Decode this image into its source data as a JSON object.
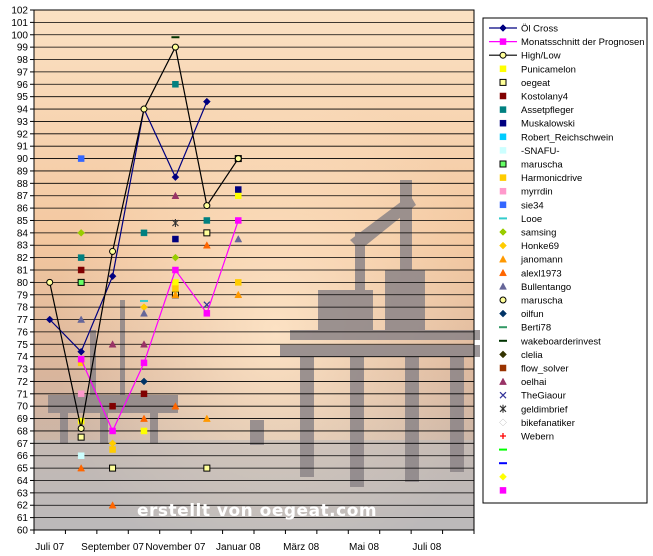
{
  "chart_data": {
    "type": "line",
    "title": "",
    "xlabel": "",
    "ylabel": "",
    "ylim": [
      60,
      102
    ],
    "y_ticks": [
      60,
      61,
      62,
      63,
      64,
      65,
      66,
      67,
      68,
      69,
      70,
      71,
      72,
      73,
      74,
      75,
      76,
      77,
      78,
      79,
      80,
      81,
      82,
      83,
      84,
      85,
      86,
      87,
      88,
      89,
      90,
      91,
      92,
      93,
      94,
      95,
      96,
      97,
      98,
      99,
      100,
      101,
      102
    ],
    "x_tick_labels": [
      "Juli 07",
      "September 07",
      "November 07",
      "Januar 08",
      "März 08",
      "Mai 08",
      "Juli 08"
    ],
    "x_slots": 14,
    "grid": true,
    "legend_position": "right",
    "watermark": "erstellt von oegeat.com",
    "series": [
      {
        "name": "Öl Cross",
        "kind": "line",
        "color": "#000080",
        "marker": "diamond",
        "points": [
          [
            0,
            77
          ],
          [
            1,
            74.4
          ],
          [
            2,
            80.5
          ],
          [
            3,
            94
          ],
          [
            4,
            88.5
          ],
          [
            5,
            94.6
          ]
        ]
      },
      {
        "name": "Monatsschnitt der Prognosen",
        "kind": "line",
        "color": "#ff00ff",
        "marker": "square",
        "points": [
          [
            1,
            73.8
          ],
          [
            2,
            68
          ],
          [
            3,
            73.5
          ],
          [
            4,
            81
          ],
          [
            5,
            77.5
          ],
          [
            6,
            85
          ]
        ]
      },
      {
        "name": "High/Low",
        "kind": "line",
        "color": "#000000",
        "marker": "circle",
        "points": [
          [
            0,
            80
          ],
          [
            1,
            68.2
          ],
          [
            2,
            82.5
          ],
          [
            3,
            94
          ],
          [
            4,
            99
          ],
          [
            5,
            86.2
          ],
          [
            6,
            90
          ]
        ]
      },
      {
        "name": "Punicamelon",
        "kind": "marker",
        "color": "#ffff00",
        "marker": "square",
        "points": [
          [
            1,
            68.8
          ],
          [
            3,
            68
          ],
          [
            4,
            80
          ],
          [
            6,
            87
          ]
        ]
      },
      {
        "name": "oegeat",
        "kind": "marker",
        "color": "#ffff99",
        "marker": "square-open",
        "points": [
          [
            1,
            67.5
          ],
          [
            2,
            65
          ],
          [
            4,
            79
          ],
          [
            5,
            84
          ],
          [
            5,
            65
          ],
          [
            6,
            90
          ]
        ]
      },
      {
        "name": "Kostolany4",
        "kind": "marker",
        "color": "#800000",
        "marker": "square",
        "points": [
          [
            1,
            81
          ],
          [
            2,
            70
          ],
          [
            3,
            71
          ]
        ]
      },
      {
        "name": "Assetpfleger",
        "kind": "marker",
        "color": "#008080",
        "marker": "square",
        "points": [
          [
            1,
            82
          ],
          [
            3,
            84
          ],
          [
            4,
            96
          ],
          [
            5,
            85
          ]
        ]
      },
      {
        "name": "Muskalowski",
        "kind": "marker",
        "color": "#000080",
        "marker": "square",
        "points": [
          [
            4,
            83.5
          ],
          [
            6,
            87.5
          ]
        ]
      },
      {
        "name": "Robert_Reichschwein",
        "kind": "marker",
        "color": "#00ccff",
        "marker": "square",
        "points": []
      },
      {
        "name": "-SNAFU-",
        "kind": "marker",
        "color": "#ccffff",
        "marker": "square",
        "points": [
          [
            1,
            66
          ]
        ]
      },
      {
        "name": "maruscha",
        "kind": "marker",
        "color": "#66ff66",
        "marker": "square-open",
        "points": [
          [
            1,
            80
          ]
        ]
      },
      {
        "name": "Harmonicdrive",
        "kind": "marker",
        "color": "#ffcc00",
        "marker": "square",
        "points": [
          [
            1,
            73.5
          ],
          [
            2,
            66.5
          ],
          [
            4,
            79.5
          ],
          [
            6,
            80
          ]
        ]
      },
      {
        "name": "myrrdin",
        "kind": "marker",
        "color": "#ff99cc",
        "marker": "square",
        "points": [
          [
            1,
            71
          ]
        ]
      },
      {
        "name": "sie34",
        "kind": "marker",
        "color": "#3366ff",
        "marker": "square",
        "points": [
          [
            1,
            90
          ]
        ]
      },
      {
        "name": "Looe",
        "kind": "marker",
        "color": "#33cccc",
        "marker": "dash",
        "points": [
          [
            3,
            78.5
          ]
        ]
      },
      {
        "name": "samsing",
        "kind": "marker",
        "color": "#99cc00",
        "marker": "diamond",
        "points": [
          [
            1,
            84
          ],
          [
            4,
            82
          ]
        ]
      },
      {
        "name": "Honke69",
        "kind": "marker",
        "color": "#ffcc00",
        "marker": "diamond",
        "points": [
          [
            2,
            67
          ],
          [
            3,
            78
          ]
        ]
      },
      {
        "name": "janomann",
        "kind": "marker",
        "color": "#ff9900",
        "marker": "triangle",
        "points": [
          [
            4,
            79
          ],
          [
            5,
            69
          ],
          [
            6,
            79
          ]
        ]
      },
      {
        "name": "alexl1973",
        "kind": "marker",
        "color": "#ff6600",
        "marker": "triangle",
        "points": [
          [
            1,
            65
          ],
          [
            2,
            62
          ],
          [
            3,
            69
          ],
          [
            4,
            70
          ],
          [
            5,
            83
          ]
        ]
      },
      {
        "name": "Bullentango",
        "kind": "marker",
        "color": "#666699",
        "marker": "triangle",
        "points": [
          [
            1,
            77
          ],
          [
            3,
            77.5
          ],
          [
            6,
            83.5
          ]
        ]
      },
      {
        "name": "maruscha",
        "kind": "marker",
        "color": "#969696",
        "marker": "circle",
        "points": []
      },
      {
        "name": "oilfun",
        "kind": "marker",
        "color": "#003366",
        "marker": "diamond",
        "points": [
          [
            3,
            72
          ]
        ]
      },
      {
        "name": "Berti78",
        "kind": "marker",
        "color": "#339966",
        "marker": "dash",
        "points": []
      },
      {
        "name": "wakeboarderinvest",
        "kind": "marker",
        "color": "#003300",
        "marker": "dash",
        "points": [
          [
            4,
            99.8
          ]
        ]
      },
      {
        "name": "clelia",
        "kind": "marker",
        "color": "#333300",
        "marker": "diamond",
        "points": []
      },
      {
        "name": "flow_solver",
        "kind": "marker",
        "color": "#993300",
        "marker": "square",
        "points": []
      },
      {
        "name": "oelhai",
        "kind": "marker",
        "color": "#993366",
        "marker": "triangle",
        "points": [
          [
            2,
            75
          ],
          [
            3,
            75
          ],
          [
            4,
            87
          ]
        ]
      },
      {
        "name": "TheGiaour",
        "kind": "marker",
        "color": "#333399",
        "marker": "x",
        "points": [
          [
            5,
            78.2
          ]
        ]
      },
      {
        "name": "geldimbrief",
        "kind": "marker",
        "color": "#333333",
        "marker": "star",
        "points": [
          [
            4,
            84.8
          ]
        ]
      },
      {
        "name": "bikefanatiker",
        "kind": "marker",
        "color": "#ffffff",
        "marker": "diamond",
        "points": []
      },
      {
        "name": "Webern",
        "kind": "marker",
        "color": "#ff0000",
        "marker": "plus",
        "points": []
      },
      {
        "name": "",
        "kind": "marker",
        "color": "#00ff00",
        "marker": "dash",
        "points": []
      },
      {
        "name": "",
        "kind": "marker",
        "color": "#0000ff",
        "marker": "dash",
        "points": []
      },
      {
        "name": "",
        "kind": "marker",
        "color": "#ffff00",
        "marker": "diamond",
        "points": []
      },
      {
        "name": "",
        "kind": "marker",
        "color": "#ff00ff",
        "marker": "square",
        "points": []
      }
    ]
  }
}
